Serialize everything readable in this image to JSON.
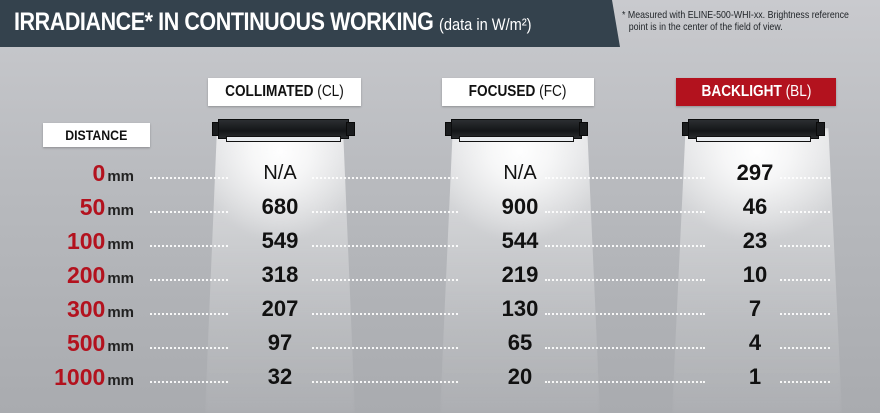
{
  "title": {
    "main": "IRRADIANCE* IN CONTINUOUS WORKING",
    "unit": "(data in W/m²)"
  },
  "footnote": {
    "line1": "* Measured with ELINE-500-WHI-xx. Brightness reference",
    "line2": "point is in the center of the field of view."
  },
  "distance_header": "DISTANCE",
  "columns": [
    {
      "label_bold": "COLLIMATED",
      "label_code": "(CL)"
    },
    {
      "label_bold": "FOCUSED",
      "label_code": "(FC)"
    },
    {
      "label_bold": "BACKLIGHT",
      "label_code": "(BL)"
    }
  ],
  "unit_mm": "mm",
  "rows": [
    {
      "distance": "0",
      "cl": "N/A",
      "fc": "N/A",
      "bl": "297"
    },
    {
      "distance": "50",
      "cl": "680",
      "fc": "900",
      "bl": "46"
    },
    {
      "distance": "100",
      "cl": "549",
      "fc": "544",
      "bl": "23"
    },
    {
      "distance": "200",
      "cl": "318",
      "fc": "219",
      "bl": "10"
    },
    {
      "distance": "300",
      "cl": "207",
      "fc": "130",
      "bl": "7"
    },
    {
      "distance": "500",
      "cl": "97",
      "fc": "65",
      "bl": "4"
    },
    {
      "distance": "1000",
      "cl": "32",
      "fc": "20",
      "bl": "1"
    }
  ],
  "colors": {
    "title_bar": "#34424d",
    "accent_red": "#b3121e"
  }
}
